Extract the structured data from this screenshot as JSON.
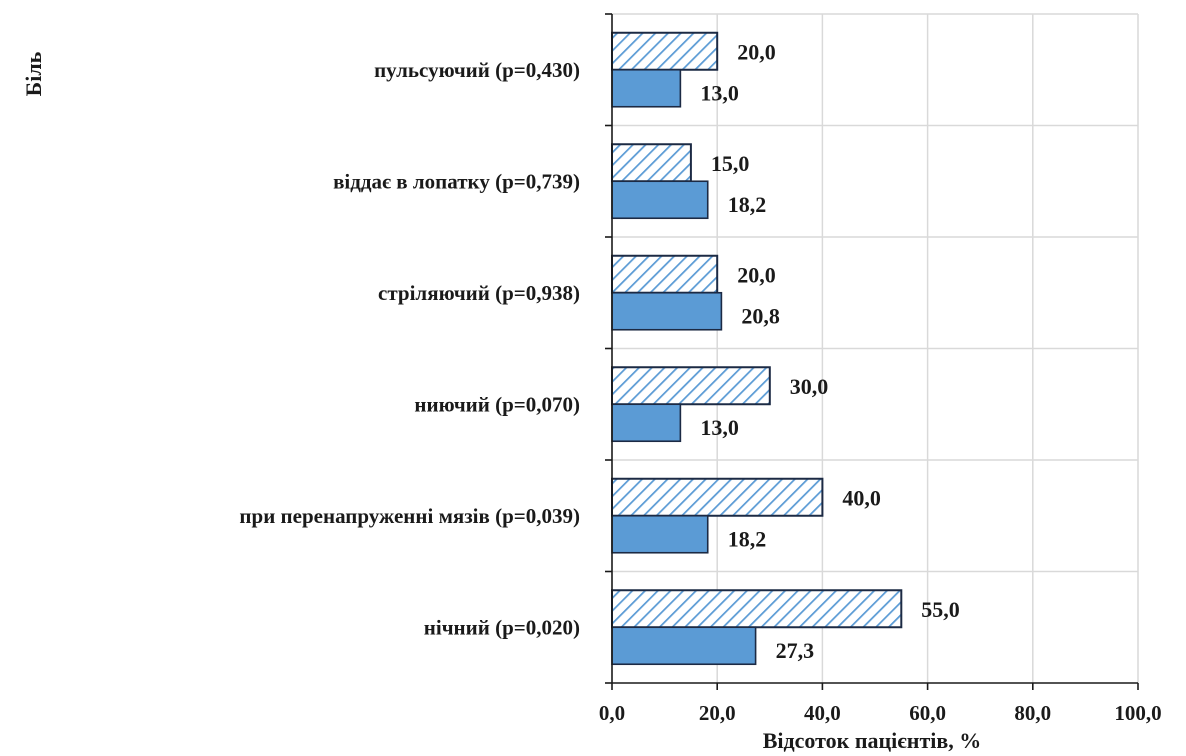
{
  "chart_data": {
    "type": "bar",
    "orientation": "horizontal",
    "title": "",
    "ylabel": "Біль",
    "xlabel": "Відсоток пацієнтів, %",
    "xlim": [
      0,
      100
    ],
    "x_ticks": [
      "0,0",
      "20,0",
      "40,0",
      "60,0",
      "80,0",
      "100,0"
    ],
    "grid": true,
    "categories": [
      "пульсуючий (р=0,430)",
      "віддає в лопатку (р=0,739)",
      "стріляючий (р=0,938)",
      "ниючий (р=0,070)",
      "при перенапруженні мязів (р=0,039)",
      "нічний (р=0,020)"
    ],
    "series": [
      {
        "style": "hatched",
        "color": "#5b9bd5",
        "values": [
          20.0,
          15.0,
          20.0,
          30.0,
          40.0,
          55.0
        ],
        "labels": [
          "20,0",
          "15,0",
          "20,0",
          "30,0",
          "40,0",
          "55,0"
        ]
      },
      {
        "style": "solid",
        "color": "#5b9bd5",
        "values": [
          13.0,
          18.2,
          20.8,
          13.0,
          18.2,
          27.3
        ],
        "labels": [
          "13,0",
          "18,2",
          "20,8",
          "13,0",
          "18,2",
          "27,3"
        ]
      }
    ]
  }
}
